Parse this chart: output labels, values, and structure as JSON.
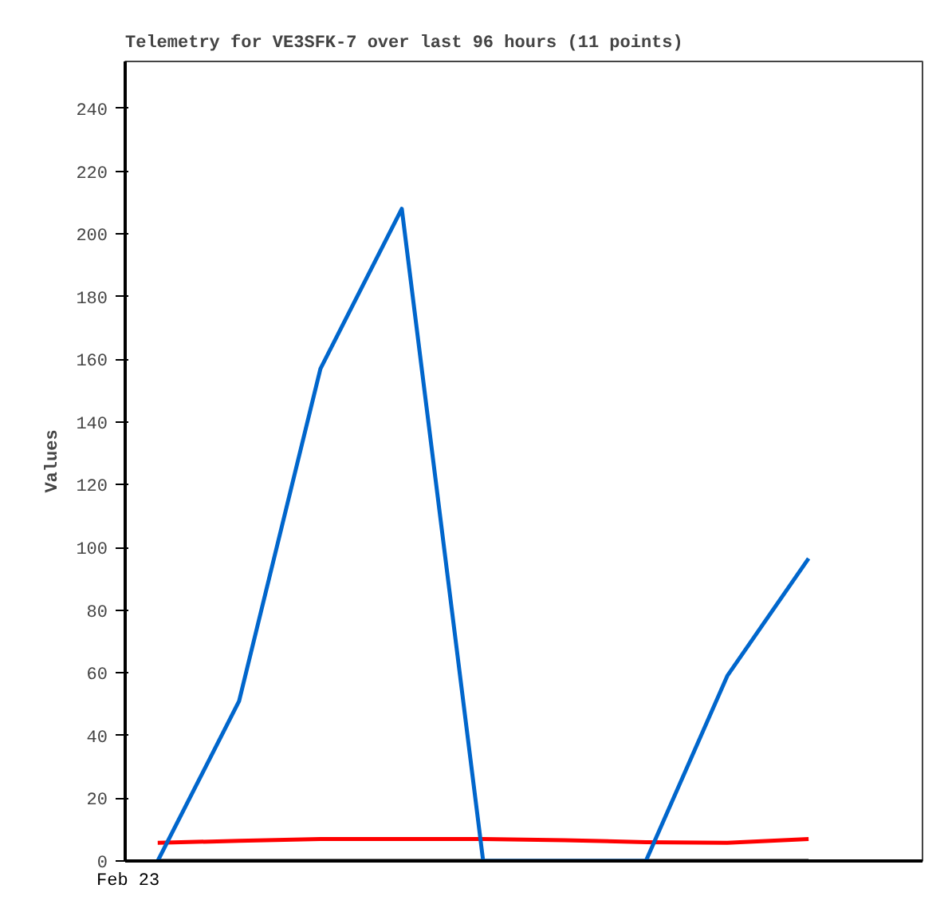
{
  "chart_data": {
    "type": "line",
    "title": "Telemetry for VE3SFK-7 over last 96 hours (11 points)",
    "ylabel": "Values",
    "annotations": [
      "Feb 23"
    ],
    "categories": [
      null,
      null,
      null,
      null,
      null,
      null,
      null,
      null,
      null
    ],
    "ylim": [
      0,
      255
    ],
    "yticks": [
      0,
      20,
      40,
      60,
      80,
      100,
      120,
      140,
      160,
      180,
      200,
      220,
      240
    ],
    "grid": false,
    "marker": "none",
    "line_style": "solid",
    "series": [
      {
        "color": "#000000",
        "values": [
          0,
          0,
          0,
          0,
          0,
          0,
          0,
          0,
          0
        ]
      },
      {
        "color": "#ff0000",
        "values": [
          5.8,
          6.4,
          7,
          7,
          7,
          6.6,
          6,
          5.8,
          7
        ]
      },
      {
        "color": "#0066cc",
        "values": [
          0,
          51,
          157,
          208,
          0,
          0,
          0,
          59,
          96.5
        ]
      }
    ]
  }
}
